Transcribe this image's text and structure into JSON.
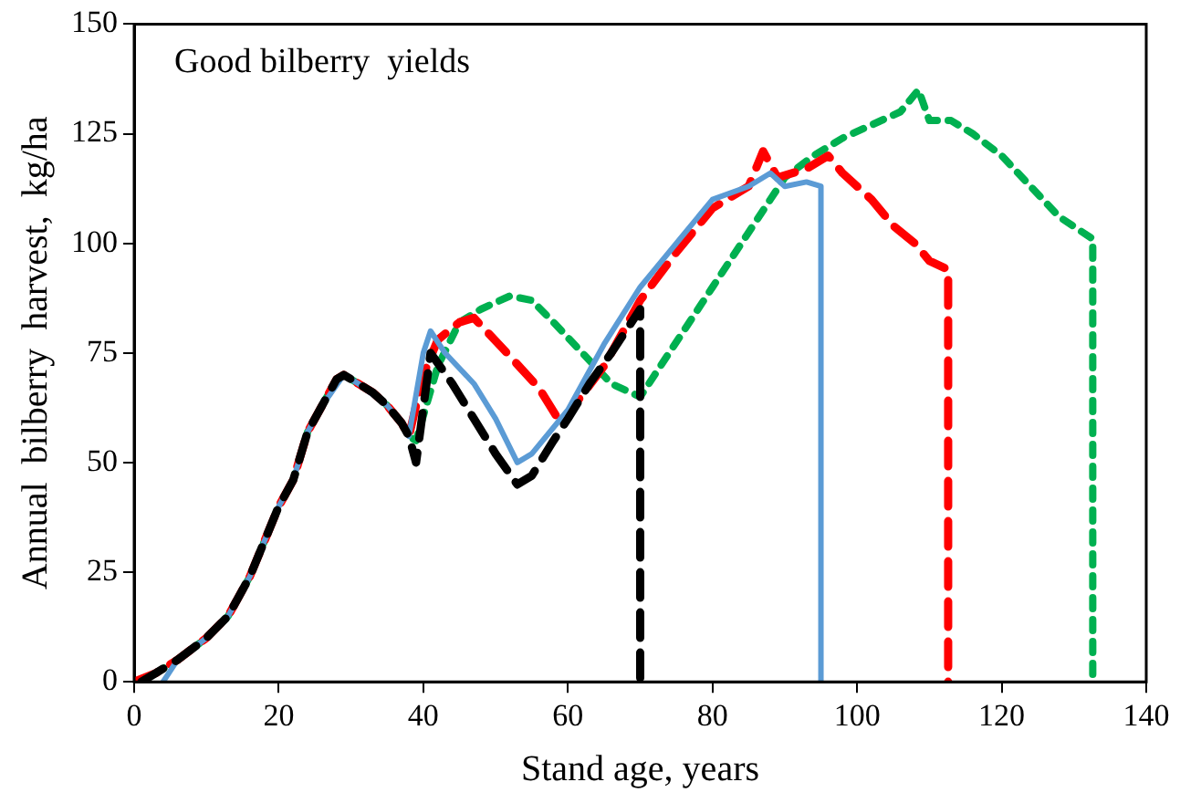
{
  "chart_data": {
    "type": "line",
    "title": "Good bilberry  yields",
    "xlabel": "Stand age, years",
    "ylabel": "Annual  bilberry  harvest,  kg/ha",
    "xlim": [
      0,
      140
    ],
    "xticks": [
      0,
      20,
      40,
      60,
      80,
      100,
      120,
      140
    ],
    "ylim": [
      0,
      150
    ],
    "yticks": [
      0,
      25,
      50,
      75,
      100,
      125,
      150
    ],
    "grid": false,
    "legend": false,
    "marker": "none",
    "series": [
      {
        "color": "#000000",
        "line_style": "dashed",
        "x": [
          1,
          3,
          6,
          10,
          13,
          16,
          18,
          20,
          22,
          24,
          26,
          28,
          29,
          31,
          33,
          35,
          37,
          38,
          39,
          41,
          44,
          47,
          50,
          53,
          55,
          58,
          60,
          63,
          66,
          68,
          70,
          70
        ],
        "values": [
          0,
          2,
          5,
          10,
          15,
          24,
          32,
          40,
          46,
          57,
          63,
          69,
          70,
          68,
          66,
          63,
          59,
          56,
          50,
          75,
          68,
          60,
          52,
          45,
          47,
          55,
          60,
          68,
          75,
          80,
          85,
          0
        ]
      },
      {
        "color": "#5b9bd5",
        "line_style": "solid",
        "x": [
          4,
          6,
          10,
          13,
          16,
          18,
          20,
          22,
          24,
          26,
          29,
          31,
          35,
          37,
          38,
          40,
          41,
          43,
          47,
          50,
          53,
          55,
          60,
          65,
          70,
          75,
          80,
          85,
          88,
          90,
          93,
          95,
          95
        ],
        "values": [
          0,
          5,
          10,
          15,
          24,
          32,
          40,
          46,
          57,
          63,
          70,
          68,
          63,
          59,
          56,
          75,
          80,
          75,
          68,
          60,
          50,
          52,
          62,
          77,
          90,
          100,
          110,
          113,
          116,
          113,
          114,
          113,
          0
        ]
      },
      {
        "color": "#ff0000",
        "line_style": "dashed",
        "x": [
          0,
          3,
          6,
          10,
          13,
          16,
          18,
          20,
          22,
          24,
          26,
          28,
          29,
          31,
          33,
          35,
          37,
          38,
          40,
          42,
          45,
          47,
          51,
          56,
          59,
          65,
          70,
          75,
          80,
          85,
          87,
          89,
          93,
          96,
          98,
          102,
          105,
          108,
          110,
          112.6,
          112.6
        ],
        "values": [
          0,
          2,
          5,
          10,
          15,
          24,
          32,
          40,
          46,
          57,
          63,
          69,
          70,
          68,
          66,
          63,
          59,
          56,
          70,
          78,
          82,
          83,
          76,
          67,
          59,
          72,
          87,
          98,
          108,
          113,
          121,
          115,
          117,
          120,
          116,
          110,
          104,
          100,
          96,
          94,
          0
        ]
      },
      {
        "color": "#00b050",
        "line_style": "dotted",
        "x": [
          0,
          3,
          6,
          10,
          13,
          16,
          18,
          20,
          22,
          24,
          26,
          28,
          29,
          31,
          33,
          35,
          37,
          38,
          39,
          42,
          45,
          48,
          52,
          55,
          58,
          62,
          66,
          70,
          72,
          76,
          80,
          84,
          88,
          90,
          94,
          98,
          102,
          106,
          108.5,
          110,
          113,
          116,
          120,
          124,
          128,
          132.6,
          132.6
        ],
        "values": [
          0,
          2,
          5,
          10,
          15,
          24,
          32,
          40,
          46,
          57,
          63,
          69,
          70,
          68,
          66,
          63,
          59,
          56,
          55,
          72,
          82,
          85,
          88,
          87,
          82,
          75,
          68,
          65,
          70,
          80,
          90,
          100,
          110,
          115,
          120,
          124,
          127,
          130,
          135,
          128,
          128,
          125,
          120,
          113,
          106,
          101,
          0
        ]
      }
    ]
  }
}
